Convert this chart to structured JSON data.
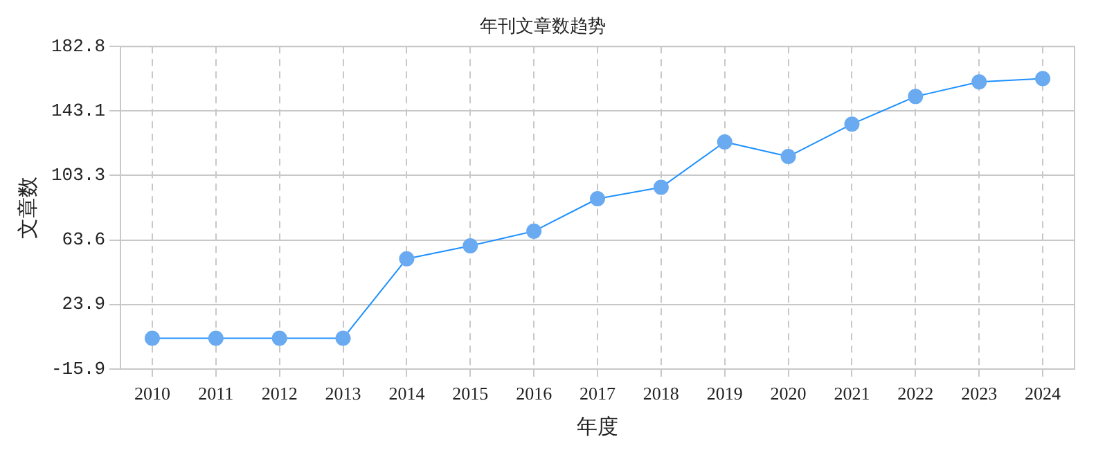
{
  "chart_data": {
    "type": "line",
    "title": "年刊文章数趋势",
    "xlabel": "年度",
    "ylabel": "文章数",
    "categories": [
      "2010",
      "2011",
      "2012",
      "2013",
      "2014",
      "2015",
      "2016",
      "2017",
      "2018",
      "2019",
      "2020",
      "2021",
      "2022",
      "2023",
      "2024"
    ],
    "series": [
      {
        "color": "#1e90ff",
        "values": [
          3,
          3,
          3,
          3,
          52,
          60,
          69,
          89,
          96,
          124,
          115,
          135,
          152,
          161,
          163
        ]
      }
    ],
    "ylim": [
      -15.9,
      182.8
    ],
    "yticks": [
      -15.9,
      23.9,
      63.6,
      103.3,
      143.1,
      182.8
    ],
    "grid": true,
    "legend": false,
    "marker": "circle",
    "line_style": "solid"
  }
}
